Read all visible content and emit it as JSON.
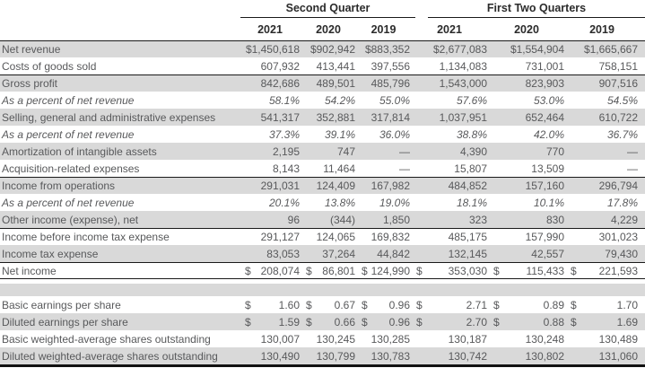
{
  "table": {
    "column_groups": [
      {
        "label": "Second Quarter",
        "years": [
          "2021",
          "2020",
          "2019"
        ]
      },
      {
        "label": "First Two Quarters",
        "years": [
          "2021",
          "2020",
          "2019"
        ]
      }
    ],
    "colors": {
      "shaded_row": "#d9d9d9",
      "text": "#58595b",
      "header_text": "#2b2b2b",
      "rule": "#1a1a1a"
    },
    "rows": [
      {
        "label": "Net revenue",
        "shaded": true,
        "border_top": true,
        "italic": false,
        "cells": [
          "$1,450,618",
          "$902,942",
          "$883,352",
          "$2,677,083",
          "$1,554,904",
          "$1,665,667"
        ]
      },
      {
        "label": "Costs of goods sold",
        "shaded": false,
        "italic": false,
        "cells": [
          "607,932",
          "413,441",
          "397,556",
          "1,134,083",
          "731,001",
          "758,151"
        ]
      },
      {
        "label": "Gross profit",
        "shaded": true,
        "border_top": true,
        "italic": false,
        "cells": [
          "842,686",
          "489,501",
          "485,796",
          "1,543,000",
          "823,903",
          "907,516"
        ]
      },
      {
        "label": "As a percent of net revenue",
        "shaded": false,
        "italic": true,
        "cells": [
          "58.1%",
          "54.2%",
          "55.0%",
          "57.6%",
          "53.0%",
          "54.5%"
        ]
      },
      {
        "label": "Selling, general and administrative expenses",
        "shaded": true,
        "italic": false,
        "cells": [
          "541,317",
          "352,881",
          "317,814",
          "1,037,951",
          "652,464",
          "610,722"
        ]
      },
      {
        "label": "As a percent of net revenue",
        "shaded": false,
        "italic": true,
        "cells": [
          "37.3%",
          "39.1%",
          "36.0%",
          "38.8%",
          "42.0%",
          "36.7%"
        ]
      },
      {
        "label": "Amortization of intangible assets",
        "shaded": true,
        "italic": false,
        "cells": [
          "2,195",
          "747",
          "—",
          "4,390",
          "770",
          "—"
        ]
      },
      {
        "label": "Acquisition-related expenses",
        "shaded": false,
        "italic": false,
        "cells": [
          "8,143",
          "11,464",
          "—",
          "15,807",
          "13,509",
          "—"
        ]
      },
      {
        "label": "Income from operations",
        "shaded": true,
        "border_top": true,
        "italic": false,
        "cells": [
          "291,031",
          "124,409",
          "167,982",
          "484,852",
          "157,160",
          "296,794"
        ]
      },
      {
        "label": "As a percent of net revenue",
        "shaded": false,
        "italic": true,
        "cells": [
          "20.1%",
          "13.8%",
          "19.0%",
          "18.1%",
          "10.1%",
          "17.8%"
        ]
      },
      {
        "label": "Other income (expense), net",
        "shaded": true,
        "italic": false,
        "cells": [
          "96",
          "(344)",
          "1,850",
          "323",
          "830",
          "4,229"
        ]
      },
      {
        "label": "Income before income tax expense",
        "shaded": false,
        "border_top": true,
        "italic": false,
        "cells": [
          "291,127",
          "124,065",
          "169,832",
          "485,175",
          "157,990",
          "301,023"
        ]
      },
      {
        "label": "Income tax expense",
        "shaded": true,
        "italic": false,
        "cells": [
          "83,053",
          "37,264",
          "44,842",
          "132,145",
          "42,557",
          "79,430"
        ]
      },
      {
        "label": "Net income",
        "shaded": false,
        "border_top": true,
        "border_bottom": true,
        "italic": false,
        "cells": [
          {
            "p": "$",
            "v": "208,074"
          },
          {
            "p": "$",
            "v": "86,801"
          },
          {
            "p": "$",
            "v": "124,990"
          },
          {
            "p": "$",
            "v": "353,030"
          },
          {
            "p": "$",
            "v": "115,433"
          },
          {
            "p": "$",
            "v": "221,593"
          }
        ]
      },
      {
        "spacer": true
      },
      {
        "label": "Basic earnings per share",
        "shaded": false,
        "italic": false,
        "cells": [
          {
            "p": "$",
            "v": "1.60"
          },
          {
            "p": "$",
            "v": "0.67"
          },
          {
            "p": "$",
            "v": "0.96"
          },
          {
            "p": "$",
            "v": "2.71"
          },
          {
            "p": "$",
            "v": "0.89"
          },
          {
            "p": "$",
            "v": "1.70"
          }
        ]
      },
      {
        "label": "Diluted earnings per share",
        "shaded": true,
        "italic": false,
        "cells": [
          {
            "p": "$",
            "v": "1.59"
          },
          {
            "p": "$",
            "v": "0.66"
          },
          {
            "p": "$",
            "v": "0.96"
          },
          {
            "p": "$",
            "v": "2.70"
          },
          {
            "p": "$",
            "v": "0.88"
          },
          {
            "p": "$",
            "v": "1.69"
          }
        ]
      },
      {
        "label": "Basic weighted-average shares outstanding",
        "shaded": false,
        "italic": false,
        "cells": [
          "130,007",
          "130,245",
          "130,285",
          "130,187",
          "130,248",
          "130,489"
        ]
      },
      {
        "label": "Diluted weighted-average shares outstanding",
        "shaded": true,
        "italic": false,
        "cells": [
          "130,490",
          "130,799",
          "130,783",
          "130,742",
          "130,802",
          "131,060"
        ]
      }
    ]
  }
}
